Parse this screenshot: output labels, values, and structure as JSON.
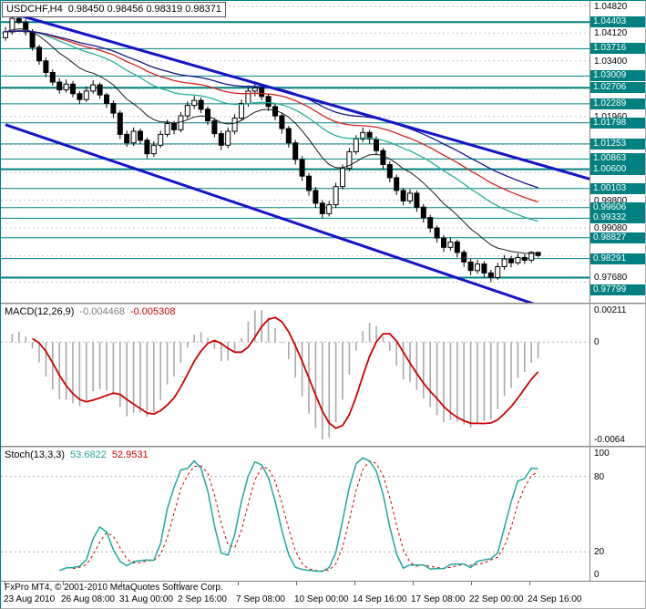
{
  "header": {
    "title": "USDCHF,H4",
    "ohlc": "0.98450 0.98456 0.98319 0.98371"
  },
  "colors": {
    "background": "#ffffff",
    "grid": "#c8c8c8",
    "level": "#008080",
    "trend": "#1414c8",
    "candle_up": "#ffffff",
    "candle_down": "#000000",
    "candle_outline": "#000000",
    "macd_hist": "#a9a9a9",
    "macd_signal": "#d00000",
    "stoch_main": "#1fa79e",
    "stoch_signal": "#d00000",
    "badge_bg": "#008080",
    "badge_text": "#ffffff"
  },
  "chart_data": [
    {
      "type": "candlestick",
      "title": "USDCHF,H4",
      "ylim": [
        0.9715,
        1.0495
      ],
      "x_labels": [
        "23 Aug 2010",
        "26 Aug 08:00",
        "31 Aug 00:00",
        "2 Sep 16:00",
        "7 Sep 08:00",
        "10 Sep 00:00",
        "14 Sep 16:00",
        "17 Sep 08:00",
        "22 Sep 00:00",
        "24 Sep 16:00"
      ],
      "candles": [
        [
          1.04,
          1.0428,
          1.0392,
          1.0415
        ],
        [
          1.0415,
          1.0462,
          1.0408,
          1.045
        ],
        [
          1.045,
          1.0478,
          1.0435,
          1.044
        ],
        [
          1.044,
          1.0448,
          1.0405,
          1.0415
        ],
        [
          1.0415,
          1.0422,
          1.0366,
          1.0375
        ],
        [
          1.0375,
          1.0382,
          1.033,
          1.034
        ],
        [
          1.034,
          1.0349,
          1.0298,
          1.031
        ],
        [
          1.031,
          1.0318,
          1.0276,
          1.0285
        ],
        [
          1.0285,
          1.0295,
          1.0255,
          1.0265
        ],
        [
          1.0265,
          1.0292,
          1.0258,
          1.028
        ],
        [
          1.028,
          1.0288,
          1.0246,
          1.0255
        ],
        [
          1.0255,
          1.0262,
          1.0228,
          1.024
        ],
        [
          1.024,
          1.0274,
          1.0234,
          1.0262
        ],
        [
          1.0262,
          1.029,
          1.0255,
          1.0278
        ],
        [
          1.0278,
          1.0284,
          1.0242,
          1.0252
        ],
        [
          1.0252,
          1.0258,
          1.0218,
          1.023
        ],
        [
          1.023,
          1.0238,
          1.0192,
          1.0205
        ],
        [
          1.0205,
          1.0212,
          1.0138,
          1.015
        ],
        [
          1.015,
          1.016,
          1.0118,
          1.0128
        ],
        [
          1.0128,
          1.0168,
          1.012,
          1.0158
        ],
        [
          1.0158,
          1.0165,
          1.0124,
          1.0135
        ],
        [
          1.0135,
          1.0142,
          1.0088,
          1.01
        ],
        [
          1.01,
          1.0132,
          1.0092,
          1.0122
        ],
        [
          1.0122,
          1.016,
          1.0115,
          1.015
        ],
        [
          1.015,
          1.0188,
          1.0143,
          1.0178
        ],
        [
          1.0178,
          1.0185,
          1.015,
          1.0162
        ],
        [
          1.0162,
          1.0208,
          1.0155,
          1.0198
        ],
        [
          1.0198,
          1.0235,
          1.019,
          1.0225
        ],
        [
          1.0225,
          1.025,
          1.0216,
          1.0238
        ],
        [
          1.0238,
          1.0246,
          1.0205,
          1.0215
        ],
        [
          1.0215,
          1.0222,
          1.0174,
          1.0185
        ],
        [
          1.0185,
          1.0192,
          1.0142,
          1.0152
        ],
        [
          1.0152,
          1.016,
          1.011,
          1.0122
        ],
        [
          1.0122,
          1.0168,
          1.0114,
          1.0158
        ],
        [
          1.0158,
          1.0202,
          1.015,
          1.0192
        ],
        [
          1.0192,
          1.024,
          1.0185,
          1.023
        ],
        [
          1.023,
          1.0272,
          1.0222,
          1.0262
        ],
        [
          1.0262,
          1.0282,
          1.0248,
          1.027
        ],
        [
          1.027,
          1.0276,
          1.0238,
          1.0248
        ],
        [
          1.0248,
          1.0255,
          1.021,
          1.0222
        ],
        [
          1.0222,
          1.023,
          1.0186,
          1.0198
        ],
        [
          1.0198,
          1.0205,
          1.0152,
          1.0165
        ],
        [
          1.0165,
          1.0172,
          1.0116,
          1.0128
        ],
        [
          1.0128,
          1.0136,
          1.0072,
          1.0085
        ],
        [
          1.0085,
          1.0094,
          1.003,
          1.0042
        ],
        [
          1.0042,
          1.005,
          0.9992,
          1.0005
        ],
        [
          1.0005,
          1.0014,
          0.996,
          0.9972
        ],
        [
          0.9972,
          0.998,
          0.9934,
          0.9945
        ],
        [
          0.9945,
          0.9978,
          0.9938,
          0.9968
        ],
        [
          0.9968,
          1.0025,
          0.996,
          1.0015
        ],
        [
          1.0015,
          1.0072,
          1.0008,
          1.0062
        ],
        [
          1.0062,
          1.0115,
          1.0055,
          1.0105
        ],
        [
          1.0105,
          1.0148,
          1.0098,
          1.0138
        ],
        [
          1.0138,
          1.0168,
          1.013,
          1.0155
        ],
        [
          1.0155,
          1.0162,
          1.0126,
          1.0138
        ],
        [
          1.0138,
          1.0145,
          1.0096,
          1.0108
        ],
        [
          1.0108,
          1.0115,
          1.006,
          1.0072
        ],
        [
          1.0072,
          1.008,
          1.0026,
          1.0038
        ],
        [
          1.0038,
          1.0046,
          0.9993,
          1.0005
        ],
        [
          1.0005,
          1.0012,
          0.9966,
          0.9978
        ],
        [
          0.9978,
          1.0008,
          0.997,
          0.9998
        ],
        [
          0.9998,
          1.0005,
          0.995,
          0.9962
        ],
        [
          0.9962,
          0.997,
          0.9922,
          0.9935
        ],
        [
          0.9935,
          0.9942,
          0.9896,
          0.9908
        ],
        [
          0.9908,
          0.9915,
          0.987,
          0.9882
        ],
        [
          0.9882,
          0.989,
          0.9846,
          0.9858
        ],
        [
          0.9858,
          0.9884,
          0.985,
          0.9872
        ],
        [
          0.9872,
          0.9878,
          0.9832,
          0.9845
        ],
        [
          0.9845,
          0.9852,
          0.9808,
          0.982
        ],
        [
          0.982,
          0.9828,
          0.9786,
          0.9798
        ],
        [
          0.9798,
          0.9826,
          0.979,
          0.9815
        ],
        [
          0.9815,
          0.9822,
          0.978,
          0.9792
        ],
        [
          0.9792,
          0.98,
          0.9768,
          0.978
        ],
        [
          0.978,
          0.9818,
          0.9774,
          0.9808
        ],
        [
          0.9808,
          0.9838,
          0.98,
          0.9828
        ],
        [
          0.9828,
          0.9836,
          0.9806,
          0.9818
        ],
        [
          0.9818,
          0.9842,
          0.9812,
          0.9832
        ],
        [
          0.9832,
          0.984,
          0.9815,
          0.9825
        ],
        [
          0.9825,
          0.9848,
          0.9818,
          0.9845
        ],
        [
          0.9845,
          0.98456,
          0.98319,
          0.98371
        ]
      ],
      "moving_averages": [
        {
          "period": 13,
          "color": "#1a1a1a",
          "width": 1
        },
        {
          "period": 34,
          "color": "#25b09b",
          "width": 1.3
        },
        {
          "period": 48,
          "color": "#d42222",
          "width": 1.3
        },
        {
          "period": 60,
          "color": "#16168c",
          "width": 1.3
        }
      ],
      "trendlines": [
        [
          0,
          1.0468,
          88,
          1.0028
        ],
        [
          0,
          1.0175,
          88,
          0.9655
        ]
      ],
      "levels": [
        [
          1.04403,
          1
        ],
        [
          1.03716,
          0
        ],
        [
          1.03009,
          0
        ],
        [
          1.02706,
          1
        ],
        [
          1.02289,
          0
        ],
        [
          1.01798,
          0
        ],
        [
          1.01253,
          0
        ],
        [
          1.00863,
          0
        ],
        [
          1.006,
          1
        ],
        [
          1.00103,
          0
        ],
        [
          0.99606,
          0
        ],
        [
          0.99332,
          0
        ],
        [
          0.98827,
          0
        ],
        [
          0.98291,
          0
        ],
        [
          0.97799,
          1
        ]
      ],
      "grid_prices": [
        1.0482,
        1.0412,
        1.034,
        1.0268,
        1.0196,
        1.0124,
        1.0052,
        0.998,
        0.9908,
        0.9836,
        0.9768
      ],
      "axis_plain": [
        {
          "p": 1.0482,
          "t": "1.04820"
        },
        {
          "p": 1.0412,
          "t": "1.04120"
        },
        {
          "p": 1.034,
          "t": "1.03400"
        },
        {
          "p": 1.0196,
          "t": "1.01960"
        },
        {
          "p": 0.998,
          "t": "0.99800"
        },
        {
          "p": 0.9908,
          "t": "0.99080"
        },
        {
          "p": 0.9768,
          "t": "0.97680",
          "dy": -6
        }
      ],
      "axis_badges": [
        {
          "p": 1.04403,
          "t": "1.04403"
        },
        {
          "p": 1.03716,
          "t": "1.03716"
        },
        {
          "p": 1.03009,
          "t": "1.03009"
        },
        {
          "p": 1.02706,
          "t": "1.02706"
        },
        {
          "p": 1.02289,
          "t": "1.02289"
        },
        {
          "p": 1.01798,
          "t": "1.01798"
        },
        {
          "p": 1.01253,
          "t": "1.01253"
        },
        {
          "p": 1.00863,
          "t": "1.00863"
        },
        {
          "p": 1.006,
          "t": "1.00600"
        },
        {
          "p": 1.00103,
          "t": "1.00103"
        },
        {
          "p": 0.99606,
          "t": "0.99606"
        },
        {
          "p": 0.99332,
          "t": "0.99332"
        },
        {
          "p": 0.98827,
          "t": "0.98827"
        },
        {
          "p": 0.98291,
          "t": "0.98291"
        },
        {
          "p": 0.97799,
          "t": "0.97799",
          "dy": 14
        }
      ]
    },
    {
      "type": "macd",
      "label": "MACD(12,26,9)",
      "params": [
        12,
        26,
        9
      ],
      "calc_periods": [
        6,
        13,
        5
      ],
      "value_main": "-0.004468",
      "value_signal": "-0.005308",
      "axis": [
        {
          "v": 0.00211,
          "t": "0.00211"
        },
        {
          "v": 0,
          "t": "0"
        },
        {
          "v": -0.0064,
          "t": "-0.0064"
        }
      ]
    },
    {
      "type": "stochastic",
      "label": "Stoch(13,3,3)",
      "params": [
        13,
        3,
        3
      ],
      "calc_periods": [
        7,
        3,
        3
      ],
      "value_main": "53.6822",
      "value_signal": "52.9531",
      "levels": [
        80,
        20
      ],
      "axis": [
        {
          "v": 100,
          "t": "100"
        },
        {
          "v": 80,
          "t": "80"
        },
        {
          "v": 20,
          "t": "20"
        },
        {
          "v": 0,
          "t": "0"
        }
      ]
    }
  ],
  "footer": {
    "copyright": "FxPro MT4, © 2001-2010 MetaQuotes Software Corp."
  }
}
